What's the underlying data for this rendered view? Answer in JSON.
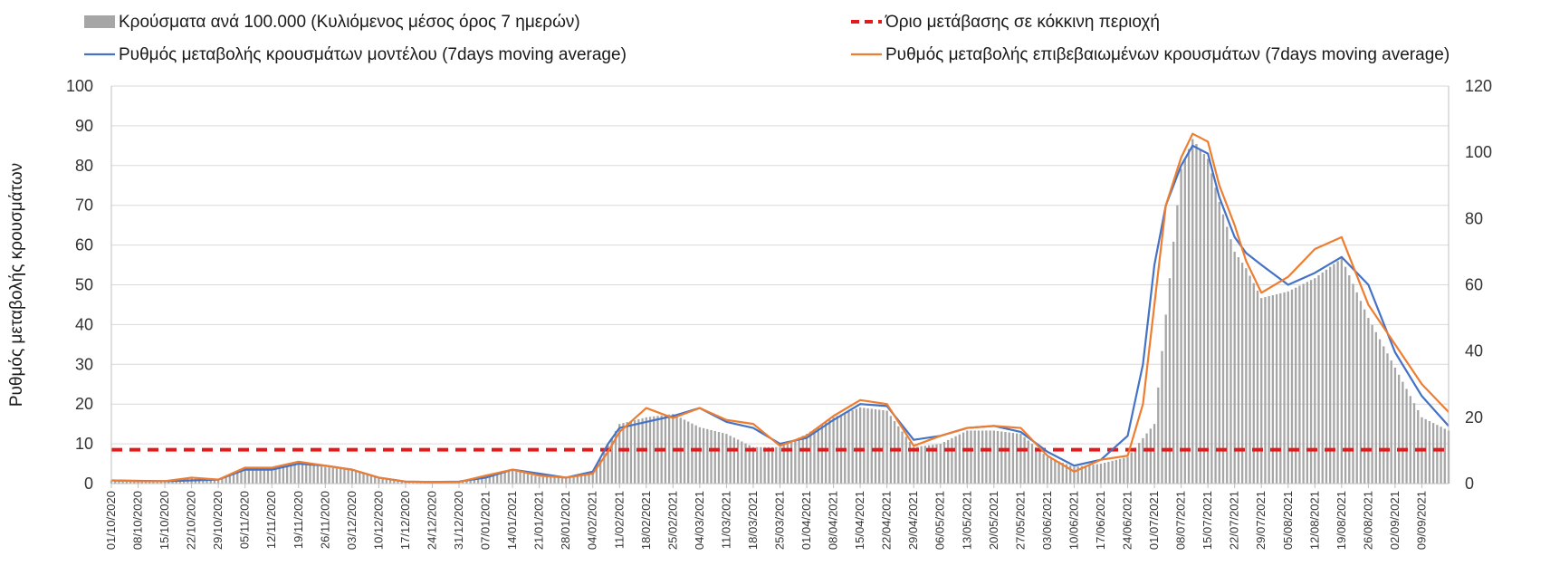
{
  "chart_data": {
    "type": "bar",
    "title": "",
    "ylabel": "Ρυθμός μεταβολής κρουσμάτων",
    "y2label": "",
    "ylim": [
      0,
      100
    ],
    "yticks": [
      0,
      10,
      20,
      30,
      40,
      50,
      60,
      70,
      80,
      90,
      100
    ],
    "y2lim": [
      0,
      120
    ],
    "y2ticks": [
      0,
      20,
      40,
      60,
      80,
      100,
      120
    ],
    "grid": true,
    "x_start": "01/10/2020",
    "x_tick_labels": [
      "01/10/2020",
      "08/10/2020",
      "15/10/2020",
      "22/10/2020",
      "29/10/2020",
      "05/11/2020",
      "12/11/2020",
      "19/11/2020",
      "26/11/2020",
      "03/12/2020",
      "10/12/2020",
      "17/12/2020",
      "24/12/2020",
      "31/12/2020",
      "07/01/2021",
      "14/01/2021",
      "21/01/2021",
      "28/01/2021",
      "04/02/2021",
      "11/02/2021",
      "18/02/2021",
      "25/02/2021",
      "04/03/2021",
      "11/03/2021",
      "18/03/2021",
      "25/03/2021",
      "01/04/2021",
      "08/04/2021",
      "15/04/2021",
      "22/04/2021",
      "29/04/2021",
      "06/05/2021",
      "13/05/2021",
      "20/05/2021",
      "27/05/2021",
      "03/06/2021",
      "10/06/2021",
      "17/06/2021",
      "24/06/2021",
      "01/07/2021",
      "08/07/2021",
      "15/07/2021",
      "22/07/2021",
      "29/07/2021",
      "05/08/2021",
      "12/08/2021",
      "19/08/2021",
      "26/08/2021",
      "02/09/2021",
      "09/09/2021"
    ],
    "n_days": 351,
    "legend": [
      {
        "label": "Κρούσματα ανά 100.000 (Κυλιόμενος μέσος όρος 7 ημερών)",
        "type": "bar",
        "color": "#a6a6a6"
      },
      {
        "label": "Όριο μετάβασης σε κόκκινη περιοχή",
        "type": "dashed",
        "color": "#e31a1c"
      },
      {
        "label": "Ρυθμός μεταβολής κρουσμάτων μοντέλου (7days moving average)",
        "type": "line",
        "color": "#4472c4"
      },
      {
        "label": "Ρυθμός μεταβολής επιβεβαιωμένων κρουσμάτων (7days moving average)",
        "type": "line",
        "color": "#ed7d31"
      }
    ],
    "legend_position": "top",
    "threshold_y": 8.5,
    "series": [
      {
        "name": "Κρούσματα ανά 100.000 (Κυλιόμενος μέσος όρος 7 ημερών)",
        "type": "bar",
        "axis": "right",
        "color": "#a6a6a6",
        "x_day": [
          0,
          7,
          14,
          21,
          28,
          35,
          42,
          49,
          56,
          63,
          70,
          77,
          84,
          91,
          98,
          105,
          112,
          119,
          126,
          133,
          140,
          147,
          154,
          161,
          168,
          175,
          182,
          189,
          196,
          203,
          210,
          217,
          224,
          231,
          238,
          245,
          252,
          259,
          266,
          273,
          280,
          283,
          287,
          290,
          294,
          297,
          301,
          308,
          315,
          322,
          329,
          336,
          343,
          350
        ],
        "values": [
          1,
          0.8,
          0.8,
          1.5,
          1,
          4,
          4.5,
          6,
          5,
          4,
          2,
          0.5,
          0.3,
          0.3,
          2,
          4,
          2,
          2,
          3,
          18,
          20,
          21,
          17,
          15,
          11,
          11,
          15,
          20,
          23,
          22,
          11,
          12,
          16,
          16,
          15,
          8,
          5,
          6,
          8,
          18,
          95,
          104,
          98,
          85,
          70,
          65,
          56,
          58,
          62,
          68,
          50,
          35,
          20,
          16
        ]
      },
      {
        "name": "Ρυθμός μεταβολής κρουσμάτων μοντέλου (7days moving average)",
        "type": "line",
        "axis": "left",
        "color": "#4472c4",
        "x_day": [
          0,
          7,
          14,
          21,
          28,
          35,
          42,
          49,
          56,
          63,
          70,
          77,
          84,
          91,
          98,
          105,
          112,
          119,
          126,
          130,
          133,
          140,
          147,
          154,
          161,
          168,
          175,
          182,
          189,
          196,
          203,
          210,
          217,
          224,
          231,
          238,
          245,
          252,
          259,
          266,
          270,
          273,
          276,
          280,
          283,
          287,
          290,
          294,
          297,
          301,
          308,
          315,
          322,
          329,
          336,
          343,
          350
        ],
        "values": [
          0.8,
          0.7,
          0.6,
          0.8,
          1,
          3.5,
          3.5,
          5,
          4.5,
          3.5,
          1.5,
          0.5,
          0.4,
          0.5,
          1.5,
          3.5,
          2.5,
          1.5,
          3,
          10,
          14,
          15.5,
          17,
          19,
          15.5,
          14,
          10,
          11.5,
          16,
          20,
          19.5,
          11,
          12,
          14,
          14.5,
          13,
          8,
          4.5,
          6,
          12,
          30,
          55,
          70,
          80,
          85,
          83,
          72,
          62,
          58,
          55,
          50,
          53,
          57,
          50,
          33,
          22,
          14.5
        ]
      },
      {
        "name": "Ρυθμός μεταβολής επιβεβαιωμένων κρουσμάτων (7days moving average)",
        "type": "line",
        "axis": "left",
        "color": "#ed7d31",
        "x_day": [
          0,
          7,
          14,
          21,
          28,
          35,
          42,
          49,
          56,
          63,
          70,
          77,
          84,
          91,
          98,
          105,
          112,
          119,
          126,
          130,
          133,
          140,
          147,
          154,
          161,
          168,
          175,
          182,
          189,
          196,
          203,
          210,
          217,
          224,
          231,
          238,
          245,
          252,
          259,
          266,
          270,
          273,
          276,
          280,
          283,
          287,
          290,
          294,
          297,
          301,
          308,
          315,
          322,
          329,
          336,
          343,
          350
        ],
        "values": [
          0.8,
          0.6,
          0.6,
          1.5,
          1,
          4,
          4,
          5.5,
          4.5,
          3.5,
          1.5,
          0.5,
          0.4,
          0.4,
          2,
          3.5,
          2,
          1.5,
          2.5,
          8,
          13,
          19,
          16.5,
          19,
          16,
          15,
          9.5,
          12,
          17,
          21,
          20,
          9.5,
          12,
          14,
          14.5,
          14,
          7,
          3,
          6,
          7,
          20,
          45,
          70,
          82,
          88,
          86,
          75,
          65,
          56,
          48,
          52,
          59,
          62,
          45,
          35,
          25,
          18
        ]
      }
    ]
  }
}
